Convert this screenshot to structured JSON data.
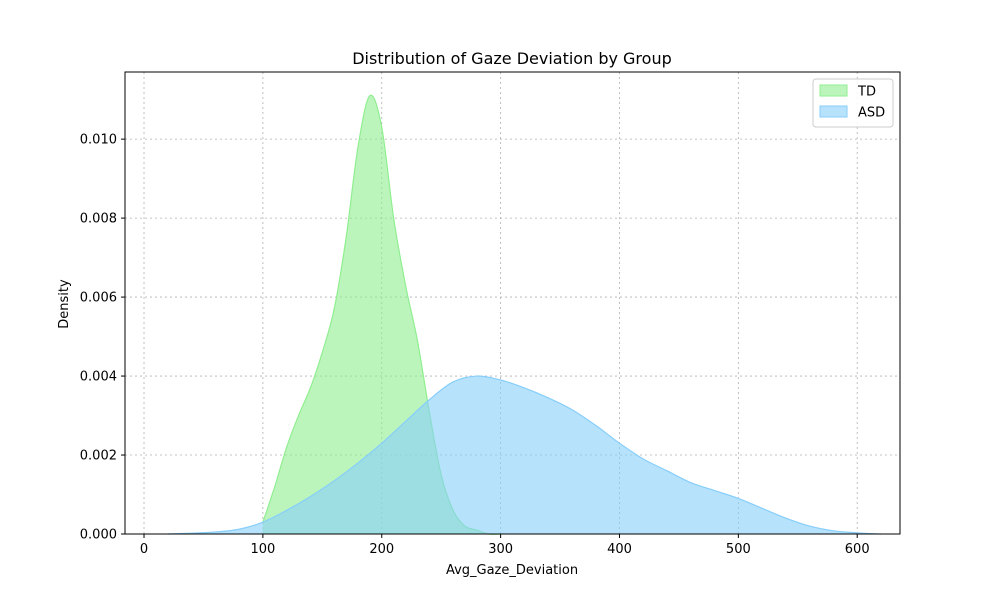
{
  "chart_data": {
    "type": "area",
    "title": "Distribution of Gaze Deviation by Group",
    "xlabel": "Avg_Gaze_Deviation",
    "ylabel": "Density",
    "xlim": [
      -16,
      636
    ],
    "ylim": [
      0,
      0.0117
    ],
    "xticks": [
      0,
      100,
      200,
      300,
      400,
      500,
      600
    ],
    "yticks": [
      0.0,
      0.002,
      0.004,
      0.006,
      0.008,
      0.01
    ],
    "ytick_labels": [
      "0.000",
      "0.002",
      "0.004",
      "0.006",
      "0.008",
      "0.010"
    ],
    "grid": true,
    "legend_position": "top-right",
    "series": [
      {
        "name": "TD",
        "color": "#90EE90",
        "x": [
          100,
          110,
          120,
          130,
          140,
          150,
          160,
          170,
          180,
          190,
          200,
          210,
          220,
          230,
          240,
          250,
          260,
          270,
          280,
          290,
          300
        ],
        "y": [
          0.0003,
          0.0012,
          0.0022,
          0.003,
          0.0037,
          0.0046,
          0.0057,
          0.0075,
          0.0098,
          0.0111,
          0.0103,
          0.008,
          0.0063,
          0.0049,
          0.0031,
          0.0015,
          0.0006,
          0.0002,
          0.0001,
          0.0,
          0.0
        ]
      },
      {
        "name": "ASD",
        "color": "#87CEFA",
        "x": [
          20,
          40,
          60,
          80,
          100,
          120,
          140,
          160,
          180,
          200,
          220,
          240,
          260,
          280,
          300,
          320,
          340,
          360,
          380,
          400,
          420,
          440,
          460,
          480,
          500,
          520,
          540,
          560,
          580,
          600,
          620
        ],
        "y": [
          0.0,
          2e-05,
          5e-05,
          0.00012,
          0.0003,
          0.0006,
          0.00095,
          0.00135,
          0.0018,
          0.0023,
          0.00285,
          0.0034,
          0.00385,
          0.004,
          0.0039,
          0.0037,
          0.00345,
          0.00315,
          0.00275,
          0.0023,
          0.0019,
          0.0016,
          0.0013,
          0.0011,
          0.0009,
          0.00065,
          0.0004,
          0.0002,
          8e-05,
          3e-05,
          0.0
        ]
      }
    ]
  }
}
